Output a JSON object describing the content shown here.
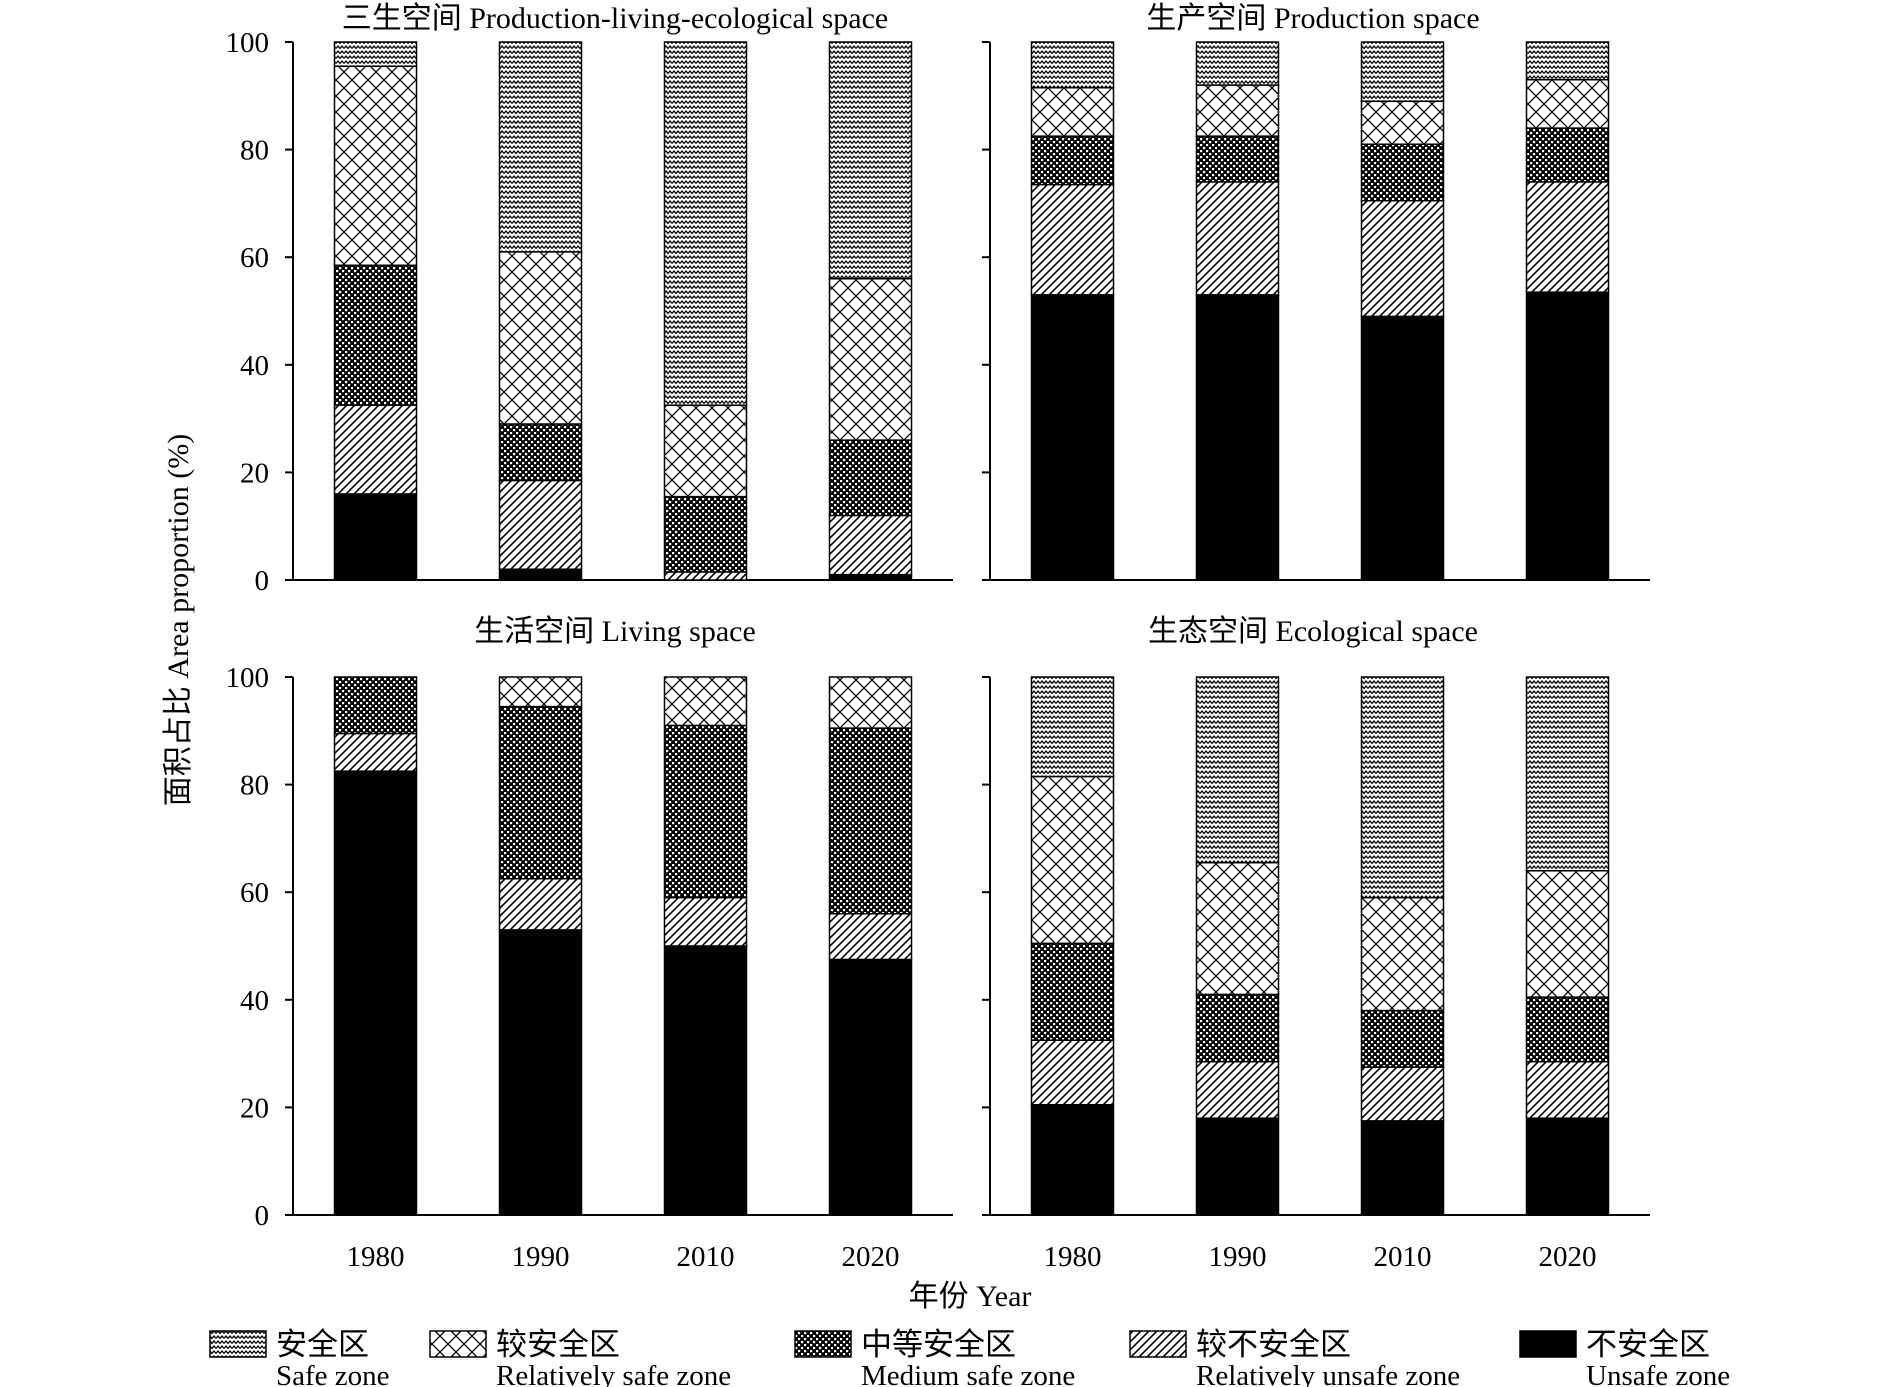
{
  "chart_data": {
    "type": "bar",
    "stacked": true,
    "ylabel": "面积占比 Area proportion (%)",
    "xlabel": "年份 Year",
    "ylim": [
      0,
      100
    ],
    "yticks": [
      0,
      20,
      40,
      60,
      80,
      100
    ],
    "categories": [
      "1980",
      "1990",
      "2010",
      "2020"
    ],
    "legend_placement": "bottom",
    "series": [
      {
        "key": "unsafe",
        "name_cn": "不安全区",
        "name_en": "Unsafe zone",
        "pattern": "solid"
      },
      {
        "key": "rel_unsafe",
        "name_cn": "较不安全区",
        "name_en": "Relatively unsafe zone",
        "pattern": "diagonal"
      },
      {
        "key": "medium",
        "name_cn": "中等安全区",
        "name_en": "Medium safe zone",
        "pattern": "checker"
      },
      {
        "key": "rel_safe",
        "name_cn": "较安全区",
        "name_en": "Relatively safe zone",
        "pattern": "crosshatch"
      },
      {
        "key": "safe",
        "name_cn": "安全区",
        "name_en": "Safe zone",
        "pattern": "zigzag"
      }
    ],
    "legend_order": [
      "safe",
      "rel_safe",
      "medium",
      "rel_unsafe",
      "unsafe"
    ],
    "panels": [
      {
        "title": "三生空间 Production-living-ecological space",
        "stacks": {
          "unsafe": [
            16,
            2,
            0,
            1
          ],
          "rel_unsafe": [
            16.5,
            16.5,
            1.5,
            11
          ],
          "medium": [
            26,
            10.5,
            14,
            14
          ],
          "rel_safe": [
            37,
            32,
            17,
            30
          ],
          "safe": [
            4.5,
            39,
            67.5,
            44
          ]
        }
      },
      {
        "title": "生产空间 Production space",
        "stacks": {
          "unsafe": [
            53,
            53,
            49,
            53.5
          ],
          "rel_unsafe": [
            20.5,
            21,
            21.5,
            20.5
          ],
          "medium": [
            9,
            8.5,
            10.5,
            10
          ],
          "rel_safe": [
            9,
            9.5,
            8,
            9
          ],
          "safe": [
            8.5,
            8,
            11,
            7
          ]
        }
      },
      {
        "title": "生活空间 Living space",
        "stacks": {
          "unsafe": [
            82.5,
            53,
            50,
            47.5
          ],
          "rel_unsafe": [
            7,
            9.5,
            9,
            8.5
          ],
          "medium": [
            10.5,
            32,
            32,
            34.5
          ],
          "rel_safe": [
            0,
            5.5,
            9,
            9.5
          ],
          "safe": [
            0,
            0,
            0,
            0
          ]
        }
      },
      {
        "title": "生态空间 Ecological space",
        "stacks": {
          "unsafe": [
            20.5,
            18,
            17.5,
            18
          ],
          "rel_unsafe": [
            12,
            10.5,
            10,
            10.5
          ],
          "medium": [
            18,
            12.5,
            10.5,
            12
          ],
          "rel_safe": [
            31,
            24.5,
            21,
            23.5
          ],
          "safe": [
            18.5,
            34.5,
            41,
            36
          ]
        }
      }
    ]
  }
}
